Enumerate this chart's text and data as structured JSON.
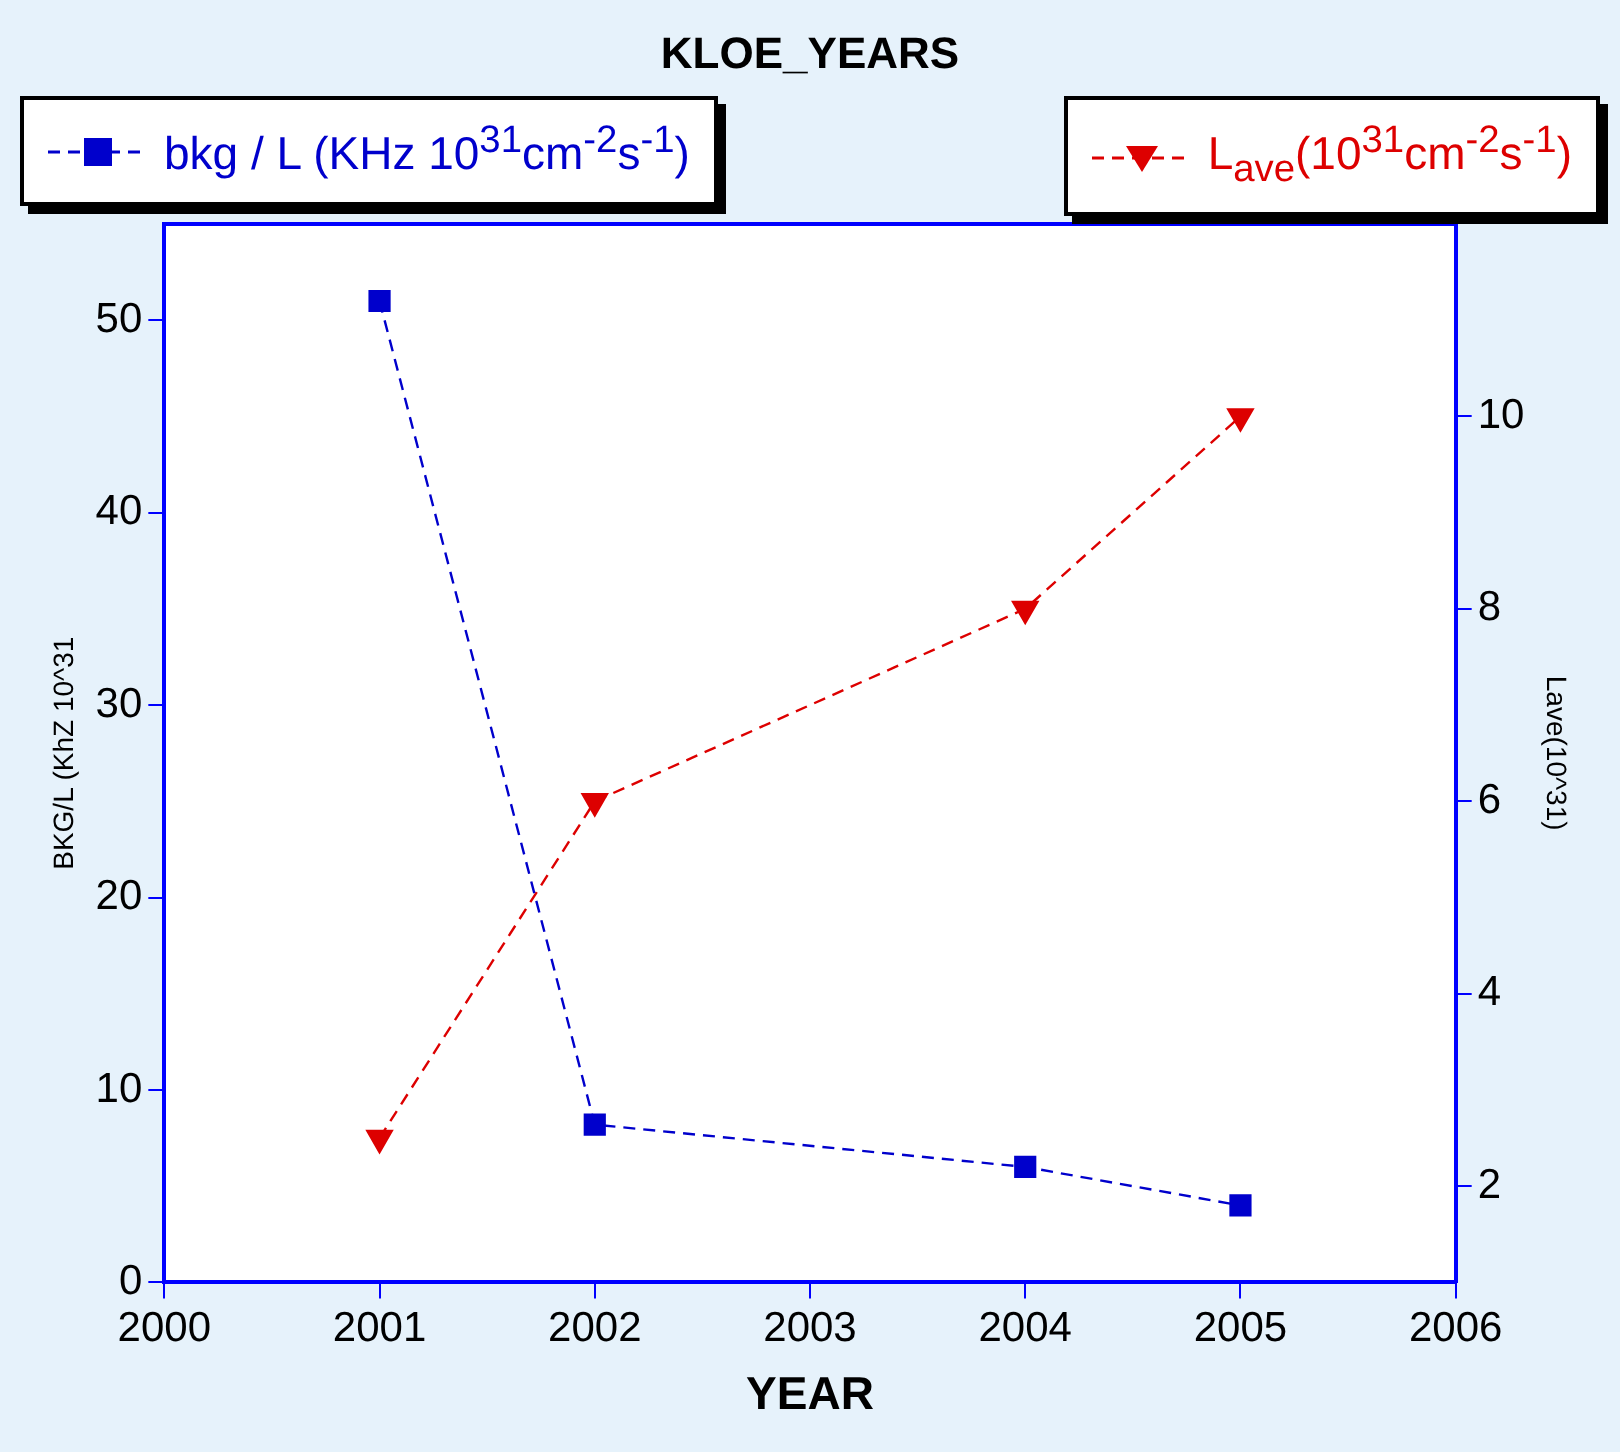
{
  "chart_data": {
    "type": "line",
    "title": "KLOE_YEARS",
    "xlabel": "YEAR",
    "ylabel": "BKG/L (KhZ 10^31",
    "y2label": "Lave(10^31)",
    "x": [
      2001,
      2002,
      2004,
      2005
    ],
    "xlim": [
      2000,
      2006
    ],
    "xticks": [
      2000,
      2001,
      2002,
      2003,
      2004,
      2005,
      2006
    ],
    "ylim": [
      0,
      55
    ],
    "yticks": [
      0,
      10,
      20,
      30,
      40,
      50
    ],
    "y2lim": [
      1,
      12
    ],
    "y2ticks": [
      2,
      4,
      6,
      8,
      10
    ],
    "grid": false,
    "legend": "top",
    "series": [
      {
        "name": "bkg / L (KHz 10$^{31}$cm$^{-2}$s$^{-1}$)",
        "color": "#0000cc",
        "values": [
          51,
          8.2,
          6.0,
          4.0
        ],
        "marker": "square",
        "line_style": "dashed"
      },
      {
        "name": "L$_{ave}$(10$^{31}$cm$^{-2}$s$^{-1}$)",
        "color": "#dd0000",
        "values": [
          2.5,
          6,
          8,
          10
        ],
        "axis": "y2",
        "marker": "triangle",
        "line_style": "dashed"
      }
    ]
  }
}
